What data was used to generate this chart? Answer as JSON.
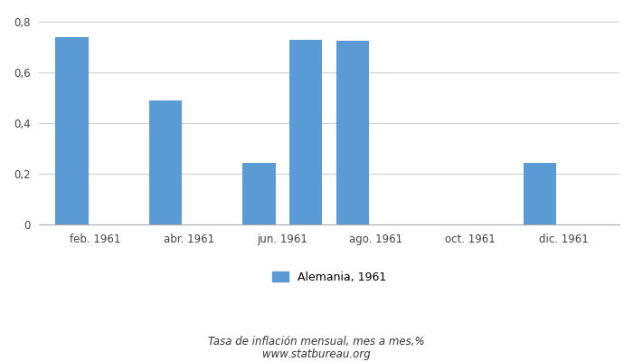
{
  "bar_values": [
    0.74,
    0.0,
    0.49,
    0.0,
    0.245,
    0.73,
    0.725,
    0.0,
    0.0,
    0.0,
    0.245,
    0.0
  ],
  "bar_color": "#5b9bd5",
  "x_positions": [
    0,
    1,
    2,
    3,
    4,
    5,
    6,
    7,
    8,
    9,
    10,
    11
  ],
  "xtick_positions": [
    0.5,
    2.5,
    4.5,
    6.5,
    8.5,
    10.5
  ],
  "xtick_labels": [
    "feb. 1961",
    "abr. 1961",
    "jun. 1961",
    "ago. 1961",
    "oct. 1961",
    "dic. 1961"
  ],
  "ylim": [
    0,
    0.8
  ],
  "yticks": [
    0,
    0.2,
    0.4,
    0.6,
    0.8
  ],
  "ytick_labels": [
    "0",
    "0,2",
    "0,4",
    "0,6",
    "0,8"
  ],
  "legend_label": "Alemania, 1961",
  "subtitle": "Tasa de inflación mensual, mes a mes,%",
  "website": "www.statbureau.org",
  "background_color": "#ffffff",
  "grid_color": "#d0d0d0",
  "bar_width": 0.7
}
